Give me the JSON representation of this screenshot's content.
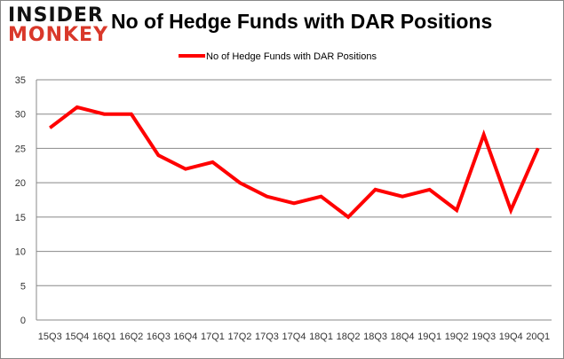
{
  "logo": {
    "line1": "INSIDER",
    "line2": "MONKEY"
  },
  "chart_data": {
    "type": "line",
    "title": "No of Hedge Funds with DAR Positions",
    "xlabel": "",
    "ylabel": "",
    "categories": [
      "15Q3",
      "15Q4",
      "16Q1",
      "16Q2",
      "16Q3",
      "16Q4",
      "17Q1",
      "17Q2",
      "17Q3",
      "17Q4",
      "18Q1",
      "18Q2",
      "18Q3",
      "18Q4",
      "19Q1",
      "19Q2",
      "19Q3",
      "19Q4",
      "20Q1"
    ],
    "series": [
      {
        "name": "No of Hedge Funds with DAR Positions",
        "color": "#ff0000",
        "values": [
          28,
          31,
          30,
          30,
          24,
          22,
          23,
          20,
          18,
          17,
          18,
          15,
          19,
          18,
          19,
          16,
          27,
          16,
          25
        ]
      }
    ],
    "ylim": [
      0,
      35
    ],
    "yticks": [
      0,
      5,
      10,
      15,
      20,
      25,
      30,
      35
    ],
    "grid": true,
    "legend": "top-center"
  }
}
